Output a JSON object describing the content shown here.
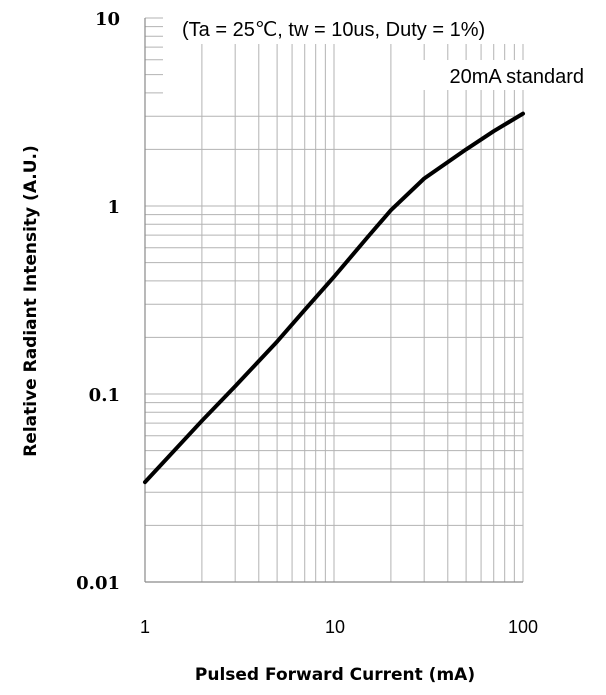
{
  "chart_data": {
    "type": "line",
    "scale": {
      "x": "log",
      "y": "log"
    },
    "xlim": [
      1,
      100
    ],
    "ylim": [
      0.01,
      10
    ],
    "grid": true,
    "xlabel": "Pulsed Forward Current (mA)",
    "ylabel": "Relative Radiant Intensity (A.U.)",
    "x_ticks": [
      "1",
      "10",
      "100"
    ],
    "y_ticks": [
      "10",
      "1",
      "0.1",
      "0.01"
    ],
    "annotations": [
      "(Ta = 25℃, tw = 10us, Duty = 1%)",
      "20mA standard"
    ],
    "series": [
      {
        "x": [
          1,
          2,
          3,
          5,
          7,
          10,
          15,
          20,
          30,
          50,
          70,
          100
        ],
        "y": [
          0.034,
          0.072,
          0.11,
          0.19,
          0.28,
          0.42,
          0.68,
          0.95,
          1.4,
          2.0,
          2.5,
          3.1
        ]
      }
    ]
  }
}
